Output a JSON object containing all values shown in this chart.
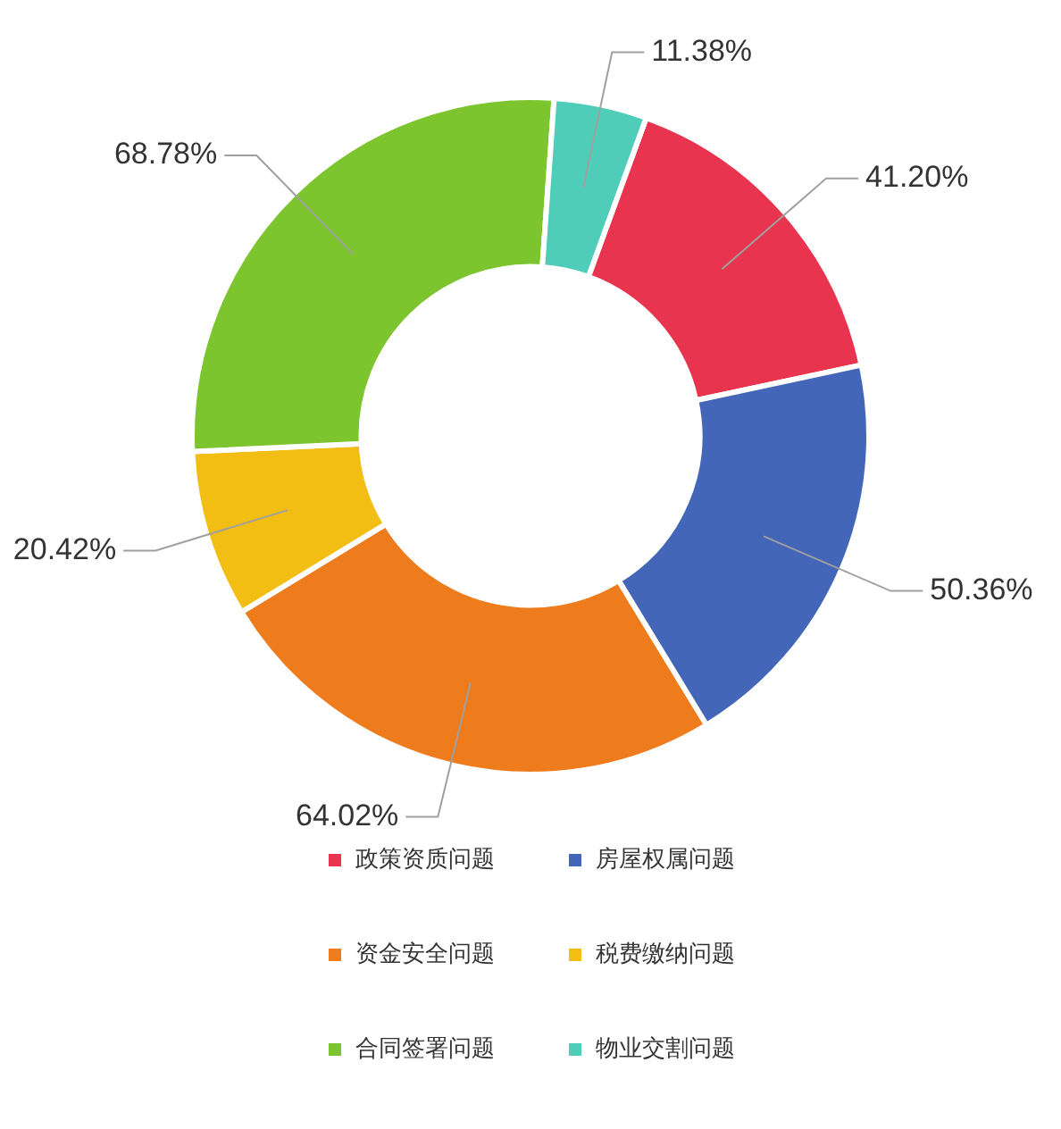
{
  "chart_data": {
    "type": "donut",
    "categories": [
      "政策资质问题",
      "房屋权属问题",
      "资金安全问题",
      "税费缴纳问题",
      "合同签署问题",
      "物业交割问题"
    ],
    "values": [
      41.2,
      50.36,
      64.02,
      20.42,
      68.78,
      11.38
    ],
    "value_labels": [
      "41.20%",
      "50.36%",
      "64.02%",
      "20.42%",
      "68.78%",
      "11.38%"
    ],
    "colors": [
      "#e8344e",
      "#4466b8",
      "#ee7b1c",
      "#f2be13",
      "#7dc52e",
      "#4fcdb8"
    ],
    "legend": "bottom"
  }
}
